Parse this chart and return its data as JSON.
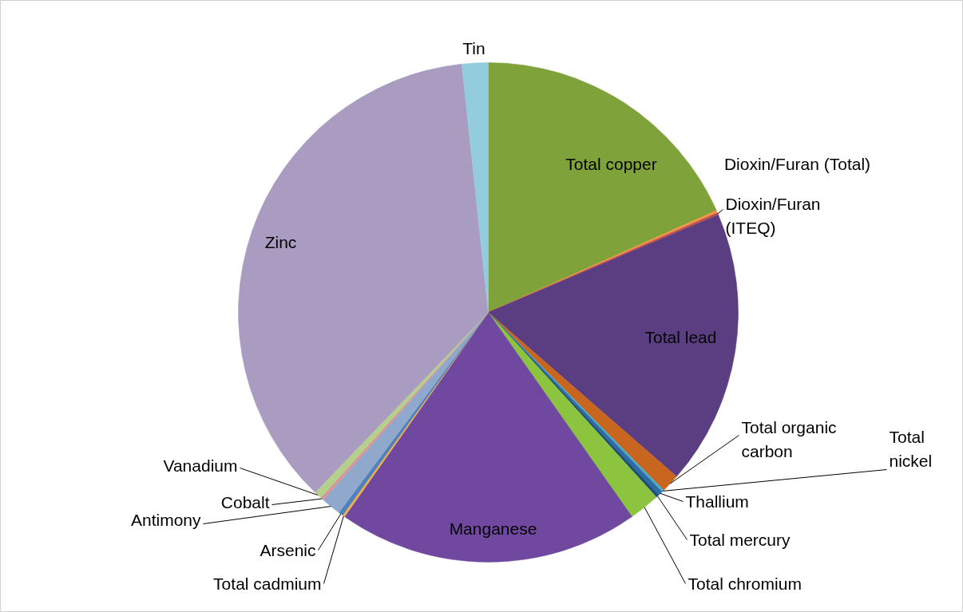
{
  "chart_data": {
    "type": "pie",
    "categories": [
      "Total copper",
      "Dioxin/Furan (Total)",
      "Dioxin/Furan (ITEQ)",
      "Total lead",
      "Total organic carbon",
      "Total nickel",
      "Thallium",
      "Total mercury",
      "Total chromium",
      "Manganese",
      "Total cadmium",
      "Arsenic",
      "Antimony",
      "Cobalt",
      "Vanadium",
      "Zinc",
      "Tin"
    ],
    "values": [
      18.4,
      0.15,
      0.15,
      17.9,
      1.2,
      0.15,
      0.3,
      0.2,
      2.0,
      19.6,
      0.15,
      0.3,
      1.3,
      0.2,
      0.5,
      36.3,
      1.7
    ],
    "colors": [
      "#7fa33a",
      "#f79646",
      "#c0504d",
      "#5b3e82",
      "#c8661f",
      "#4bacc6",
      "#2e6da4",
      "#1f4e79",
      "#8cc43f",
      "#7048a0",
      "#f5b041",
      "#4f81bd",
      "#8fa8cc",
      "#d99694",
      "#b5cf8f",
      "#a99cc0",
      "#93cddd"
    ]
  }
}
